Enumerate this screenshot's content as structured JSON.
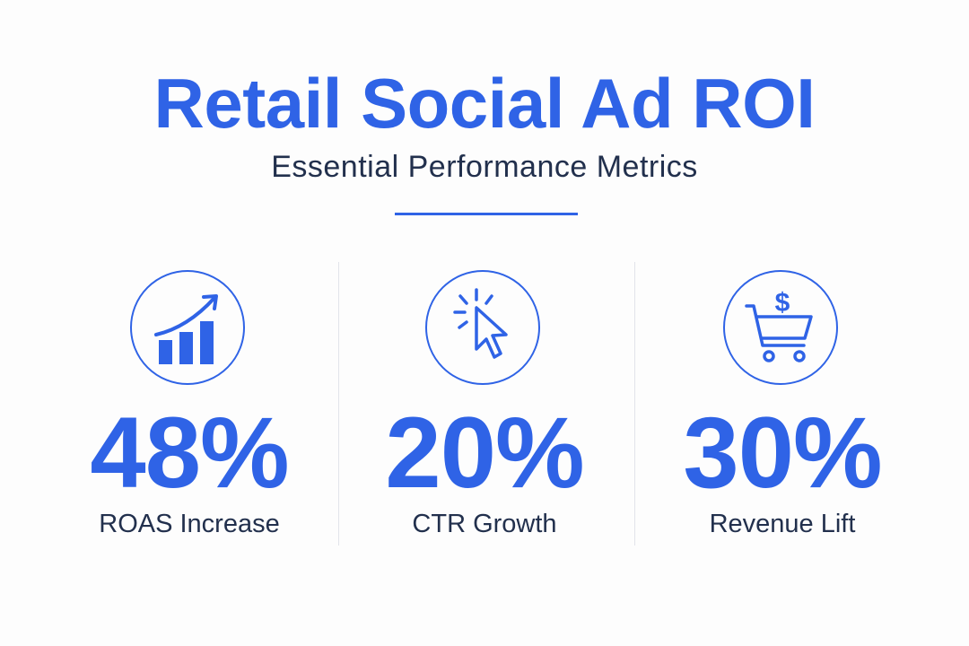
{
  "header": {
    "title": "Retail Social Ad ROI",
    "subtitle": "Essential Performance Metrics"
  },
  "colors": {
    "accent": "#2f63e6",
    "text": "#22304d",
    "divider": "#e2e4ea",
    "background": "#fdfdfd"
  },
  "metrics": [
    {
      "value": "48%",
      "label": "ROAS Increase",
      "icon": "growth-chart-icon"
    },
    {
      "value": "20%",
      "label": "CTR Growth",
      "icon": "cursor-click-icon"
    },
    {
      "value": "30%",
      "label": "Revenue Lift",
      "icon": "shopping-cart-dollar-icon"
    }
  ]
}
